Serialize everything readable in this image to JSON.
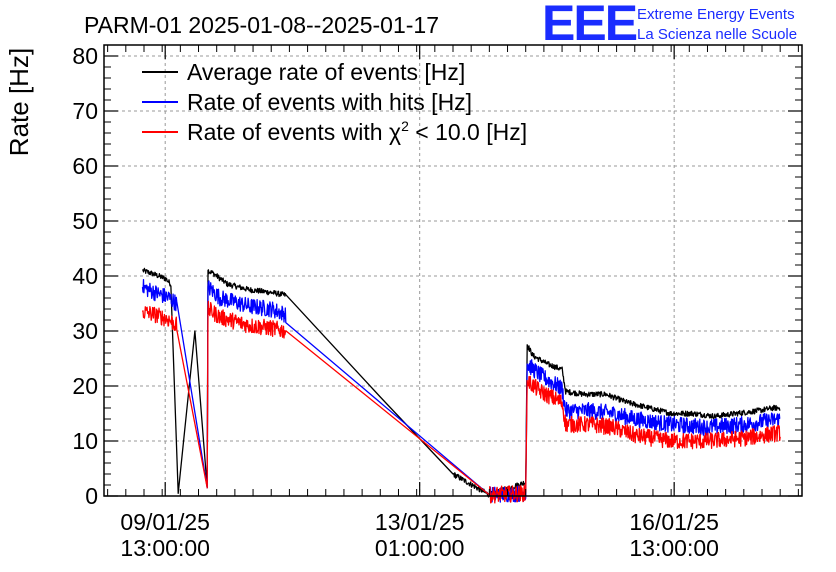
{
  "chart_data": {
    "type": "line",
    "title": "PARM-01 2025-01-08--2025-01-17",
    "ylabel": "Rate [Hz]",
    "xlabel": "",
    "ylim": [
      0,
      82
    ],
    "yticks": [
      0,
      10,
      20,
      30,
      40,
      50,
      60,
      70,
      80
    ],
    "x_unit": "days since 2025-01-08 00:00",
    "xlim": [
      8.7,
      18.3
    ],
    "xticks": [
      {
        "x": 9.5417,
        "line1": "09/01/25",
        "line2": "13:00:00"
      },
      {
        "x": 13.0417,
        "line1": "13/01/25",
        "line2": "01:00:00"
      },
      {
        "x": 16.5417,
        "line1": "16/01/25",
        "line2": "13:00:00"
      }
    ],
    "grid": true,
    "legend_position": "top-left",
    "series": [
      {
        "name": "Average rate of events [Hz]",
        "color": "#000000",
        "noise": 0.5,
        "points": [
          [
            9.23,
            41.0
          ],
          [
            9.35,
            40.5
          ],
          [
            9.45,
            40.0
          ],
          [
            9.55,
            39.5
          ],
          [
            9.62,
            38.5
          ],
          [
            9.72,
            0.5
          ],
          [
            9.95,
            30.0
          ],
          [
            10.12,
            1.5
          ],
          [
            10.13,
            41.0
          ],
          [
            10.2,
            40.5
          ],
          [
            10.4,
            38.5
          ],
          [
            10.7,
            37.5
          ],
          [
            11.0,
            37.0
          ],
          [
            11.2,
            36.5
          ],
          [
            12.5,
            18.0
          ],
          [
            13.5,
            4.0
          ],
          [
            14.0,
            0.2
          ],
          [
            14.5,
            2.5
          ],
          [
            14.52,
            27.5
          ],
          [
            14.6,
            25.5
          ],
          [
            14.8,
            24.0
          ],
          [
            15.0,
            23.0
          ],
          [
            15.05,
            19.0
          ],
          [
            15.3,
            18.5
          ],
          [
            15.6,
            18.5
          ],
          [
            15.9,
            17.0
          ],
          [
            16.2,
            16.0
          ],
          [
            16.5,
            15.0
          ],
          [
            16.8,
            15.0
          ],
          [
            17.1,
            14.5
          ],
          [
            17.4,
            15.0
          ],
          [
            17.7,
            15.5
          ],
          [
            17.9,
            16.0
          ],
          [
            18.0,
            16.0
          ]
        ]
      },
      {
        "name": "Rate of events with hits [Hz]",
        "color": "#0000ff",
        "noise": 1.5,
        "points": [
          [
            9.23,
            38.0
          ],
          [
            9.4,
            37.0
          ],
          [
            9.6,
            36.0
          ],
          [
            9.7,
            35.0
          ],
          [
            10.12,
            1.5
          ],
          [
            10.13,
            38.0
          ],
          [
            10.3,
            36.0
          ],
          [
            10.7,
            34.5
          ],
          [
            11.0,
            34.0
          ],
          [
            11.2,
            33.0
          ],
          [
            14.0,
            0.2
          ],
          [
            14.5,
            0.5
          ],
          [
            14.52,
            24.0
          ],
          [
            14.7,
            22.0
          ],
          [
            15.0,
            19.5
          ],
          [
            15.05,
            15.5
          ],
          [
            15.4,
            15.5
          ],
          [
            15.7,
            15.0
          ],
          [
            16.0,
            14.0
          ],
          [
            16.5,
            13.0
          ],
          [
            17.0,
            12.5
          ],
          [
            17.5,
            13.0
          ],
          [
            18.0,
            14.0
          ]
        ]
      },
      {
        "name": "Rate of events with χ2 < 10.0 [Hz]",
        "color": "#ff0000",
        "noise": 1.5,
        "points": [
          [
            9.23,
            33.5
          ],
          [
            9.4,
            33.0
          ],
          [
            9.6,
            32.0
          ],
          [
            9.7,
            31.0
          ],
          [
            10.12,
            1.5
          ],
          [
            10.13,
            34.0
          ],
          [
            10.3,
            32.5
          ],
          [
            10.7,
            31.0
          ],
          [
            11.0,
            30.5
          ],
          [
            11.2,
            30.0
          ],
          [
            14.0,
            0.2
          ],
          [
            14.5,
            0.5
          ],
          [
            14.52,
            21.0
          ],
          [
            14.7,
            19.0
          ],
          [
            15.0,
            17.0
          ],
          [
            15.05,
            13.0
          ],
          [
            15.4,
            13.0
          ],
          [
            15.7,
            12.5
          ],
          [
            16.0,
            11.0
          ],
          [
            16.5,
            10.0
          ],
          [
            17.0,
            10.0
          ],
          [
            17.5,
            10.5
          ],
          [
            18.0,
            11.5
          ]
        ]
      }
    ]
  },
  "logo": {
    "mark": "EEE",
    "line1": "Extreme Energy Events",
    "line2": "La Scienza nelle Scuole"
  },
  "legend": [
    {
      "prefix": "Average rate of events [Hz]",
      "sup": "",
      "suffix": ""
    },
    {
      "prefix": "Rate of events with hits [Hz]",
      "sup": "",
      "suffix": ""
    },
    {
      "prefix": "Rate of events with χ",
      "sup": "2",
      "suffix": " < 10.0 [Hz]"
    }
  ]
}
